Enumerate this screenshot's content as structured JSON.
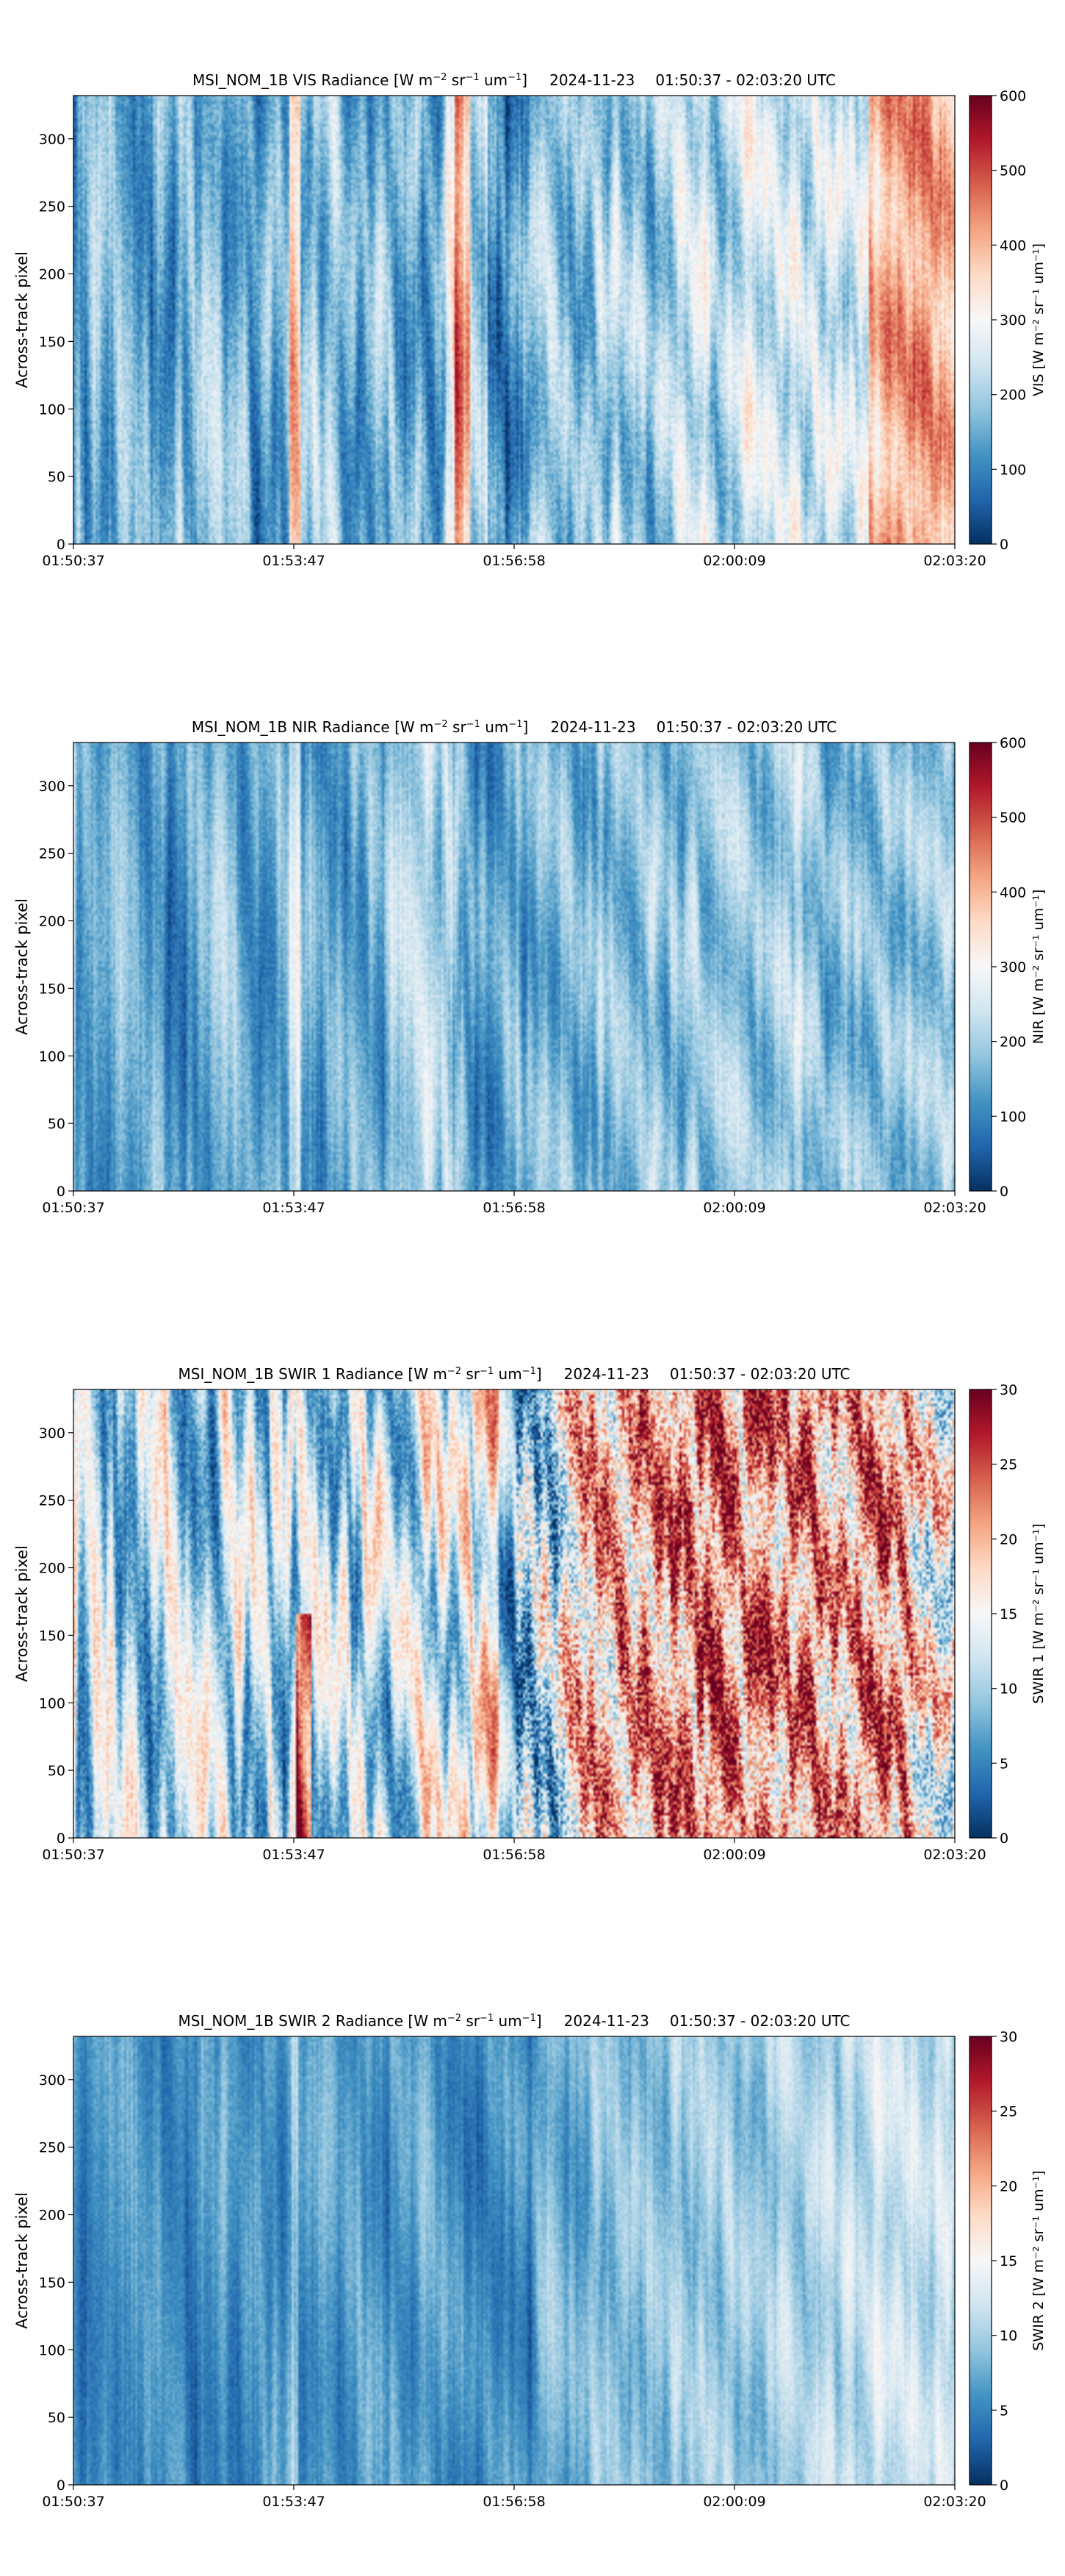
{
  "chart_data": [
    {
      "type": "heatmap",
      "title_prefix": "MSI_NOM_1B VIS Radiance [W m",
      "title_parts": [
        "MSI_NOM_1B VIS Radiance [W m",
        "−2",
        " sr",
        "−1",
        " um",
        "−1",
        "]"
      ],
      "date": "2024-11-23",
      "time_range": "01:50:37 - 02:03:20 UTC",
      "ylabel": "Across-track pixel",
      "ylim": [
        0,
        332
      ],
      "yticks": [
        "0",
        "50",
        "100",
        "150",
        "200",
        "250",
        "300"
      ],
      "ytick_values": [
        0,
        50,
        100,
        150,
        200,
        250,
        300
      ],
      "xticks": [
        "01:50:37",
        "01:53:47",
        "01:56:58",
        "02:00:09",
        "02:03:20"
      ],
      "colorbar_label": "VIS [W m⁻² sr⁻¹ um⁻¹]",
      "colorbar_range": [
        0,
        600
      ],
      "colorbar_ticks": [
        "0",
        "100",
        "200",
        "300",
        "400",
        "500",
        "600"
      ],
      "colormap": "RdBu_r",
      "scene": "vis"
    },
    {
      "type": "heatmap",
      "title_parts": [
        "MSI_NOM_1B NIR Radiance [W m",
        "−2",
        " sr",
        "−1",
        " um",
        "−1",
        "]"
      ],
      "date": "2024-11-23",
      "time_range": "01:50:37 - 02:03:20 UTC",
      "ylabel": "Across-track pixel",
      "ylim": [
        0,
        332
      ],
      "yticks": [
        "0",
        "50",
        "100",
        "150",
        "200",
        "250",
        "300"
      ],
      "ytick_values": [
        0,
        50,
        100,
        150,
        200,
        250,
        300
      ],
      "xticks": [
        "01:50:37",
        "01:53:47",
        "01:56:58",
        "02:00:09",
        "02:03:20"
      ],
      "colorbar_label": "NIR [W m⁻² sr⁻¹ um⁻¹]",
      "colorbar_range": [
        0,
        600
      ],
      "colorbar_ticks": [
        "0",
        "100",
        "200",
        "300",
        "400",
        "500",
        "600"
      ],
      "colormap": "RdBu_r",
      "scene": "nir"
    },
    {
      "type": "heatmap",
      "title_parts": [
        "MSI_NOM_1B SWIR 1 Radiance [W m",
        "−2",
        " sr",
        "−1",
        " um",
        "−1",
        "]"
      ],
      "date": "2024-11-23",
      "time_range": "01:50:37 - 02:03:20 UTC",
      "ylabel": "Across-track pixel",
      "ylim": [
        0,
        332
      ],
      "yticks": [
        "0",
        "50",
        "100",
        "150",
        "200",
        "250",
        "300"
      ],
      "ytick_values": [
        0,
        50,
        100,
        150,
        200,
        250,
        300
      ],
      "xticks": [
        "01:50:37",
        "01:53:47",
        "01:56:58",
        "02:00:09",
        "02:03:20"
      ],
      "colorbar_label": "SWIR 1 [W m⁻² sr⁻¹ um⁻¹]",
      "colorbar_range": [
        0,
        30
      ],
      "colorbar_ticks": [
        "0",
        "5",
        "10",
        "15",
        "20",
        "25",
        "30"
      ],
      "colormap": "RdBu_r",
      "scene": "swir1"
    },
    {
      "type": "heatmap",
      "title_parts": [
        "MSI_NOM_1B SWIR 2 Radiance [W m",
        "−2",
        " sr",
        "−1",
        " um",
        "−1",
        "]"
      ],
      "date": "2024-11-23",
      "time_range": "01:50:37 - 02:03:20 UTC",
      "ylabel": "Across-track pixel",
      "ylim": [
        0,
        332
      ],
      "yticks": [
        "0",
        "50",
        "100",
        "150",
        "200",
        "250",
        "300"
      ],
      "ytick_values": [
        0,
        50,
        100,
        150,
        200,
        250,
        300
      ],
      "xticks": [
        "01:50:37",
        "01:53:47",
        "01:56:58",
        "02:00:09",
        "02:03:20"
      ],
      "colorbar_label": "SWIR 2 [W m⁻² sr⁻¹ um⁻¹]",
      "colorbar_range": [
        0,
        30
      ],
      "colorbar_ticks": [
        "0",
        "5",
        "10",
        "15",
        "20",
        "25",
        "30"
      ],
      "colormap": "RdBu_r",
      "scene": "swir2"
    }
  ]
}
